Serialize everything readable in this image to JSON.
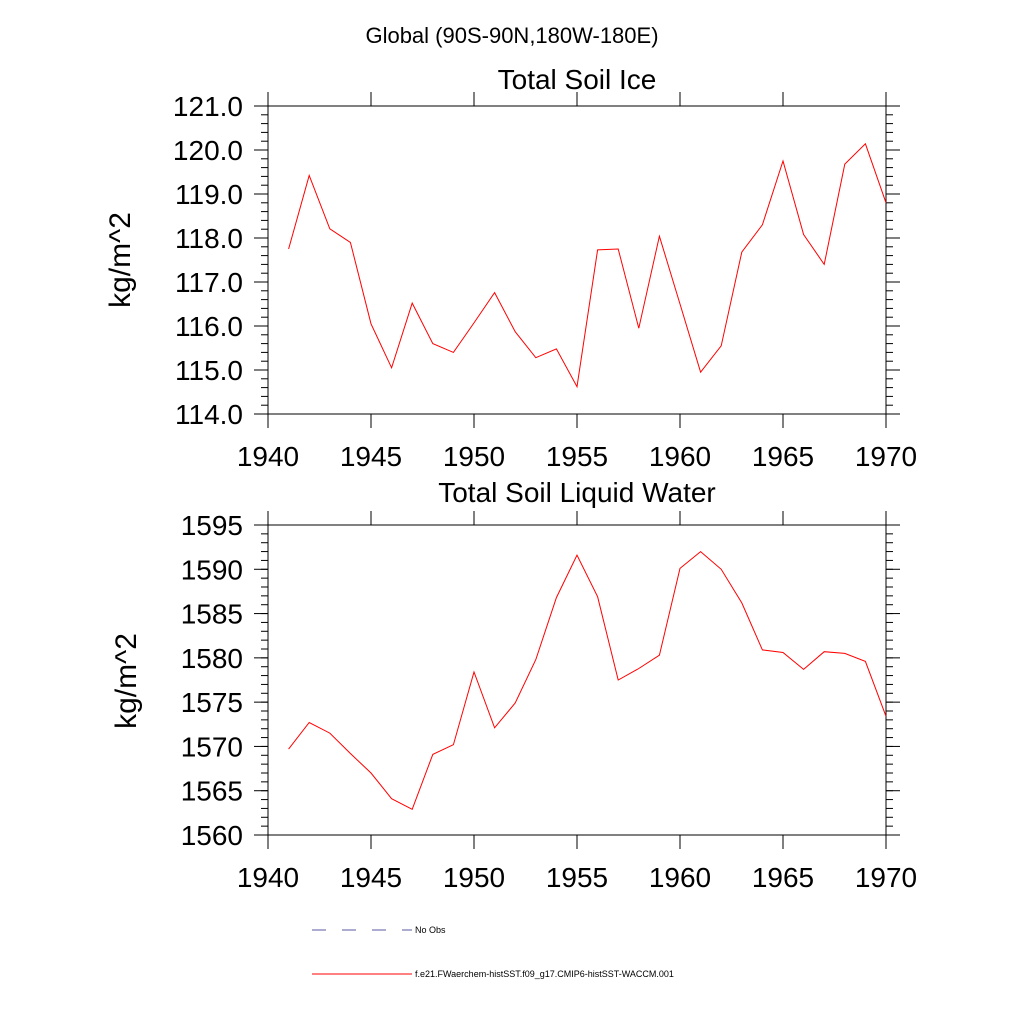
{
  "figure_title": "Global (90S-90N,180W-180E)",
  "chart_data": [
    {
      "type": "line",
      "title": "Total Soil Ice",
      "xlabel": "",
      "ylabel": "kg/m^2",
      "xlim": [
        1940,
        1970
      ],
      "ylim": [
        114,
        121
      ],
      "x_ticks": [
        1940,
        1945,
        1950,
        1955,
        1960,
        1965,
        1970
      ],
      "x_tick_labels": [
        "1940",
        "1945",
        "1950",
        "1955",
        "1960",
        "1965",
        "1970"
      ],
      "y_ticks": [
        114,
        115,
        116,
        117,
        118,
        119,
        120,
        121
      ],
      "y_tick_labels": [
        "114.0",
        "115.0",
        "116.0",
        "117.0",
        "118.0",
        "119.0",
        "120.0",
        "121.0"
      ],
      "grid": false,
      "series": [
        {
          "name": "f.e21.FWaerchem-histSST.f09_g17.CMIP6-histSST-WACCM.001",
          "color": "#ff0000",
          "x": [
            1941,
            1942,
            1943,
            1944,
            1945,
            1946,
            1947,
            1948,
            1949,
            1950,
            1951,
            1952,
            1953,
            1954,
            1955,
            1956,
            1957,
            1958,
            1959,
            1960,
            1961,
            1962,
            1963,
            1964,
            1965,
            1966,
            1967,
            1968,
            1969,
            1970
          ],
          "y": [
            117.75,
            119.42,
            118.21,
            117.9,
            116.05,
            115.05,
            116.52,
            115.6,
            115.4,
            116.07,
            116.76,
            115.87,
            115.28,
            115.48,
            114.62,
            117.73,
            117.75,
            115.95,
            118.04,
            116.5,
            114.95,
            115.55,
            117.68,
            118.3,
            119.75,
            118.08,
            117.4,
            119.68,
            120.14,
            118.8
          ]
        }
      ]
    },
    {
      "type": "line",
      "title": "Total Soil Liquid Water",
      "xlabel": "",
      "ylabel": "kg/m^2",
      "xlim": [
        1940,
        1970
      ],
      "ylim": [
        1560,
        1595
      ],
      "x_ticks": [
        1940,
        1945,
        1950,
        1955,
        1960,
        1965,
        1970
      ],
      "x_tick_labels": [
        "1940",
        "1945",
        "1950",
        "1955",
        "1960",
        "1965",
        "1970"
      ],
      "y_ticks": [
        1560,
        1565,
        1570,
        1575,
        1580,
        1585,
        1590,
        1595
      ],
      "y_tick_labels": [
        "1560",
        "1565",
        "1570",
        "1575",
        "1580",
        "1585",
        "1590",
        "1595"
      ],
      "grid": false,
      "series": [
        {
          "name": "f.e21.FWaerchem-histSST.f09_g17.CMIP6-histSST-WACCM.001",
          "color": "#ff0000",
          "x": [
            1941,
            1942,
            1943,
            1944,
            1945,
            1946,
            1947,
            1948,
            1949,
            1950,
            1951,
            1952,
            1953,
            1954,
            1955,
            1956,
            1957,
            1958,
            1959,
            1960,
            1961,
            1962,
            1963,
            1964,
            1965,
            1966,
            1967,
            1968,
            1969,
            1970
          ],
          "y": [
            1569.7,
            1572.7,
            1571.5,
            1569.2,
            1567.0,
            1564.1,
            1562.9,
            1569.1,
            1570.2,
            1578.4,
            1572.1,
            1574.9,
            1579.8,
            1586.8,
            1591.6,
            1586.9,
            1577.5,
            1578.8,
            1580.3,
            1590.1,
            1592.0,
            1590.0,
            1586.2,
            1580.9,
            1580.6,
            1578.7,
            1580.7,
            1580.5,
            1579.6,
            1573.4
          ]
        }
      ]
    }
  ],
  "legend": {
    "placement": "bottom-center",
    "entries": [
      {
        "label": "No Obs",
        "color": "#5a5aa0",
        "style": "dashed"
      },
      {
        "label": "f.e21.FWaerchem-histSST.f09_g17.CMIP6-histSST-WACCM.001",
        "color": "#ff0000",
        "style": "solid"
      }
    ]
  }
}
